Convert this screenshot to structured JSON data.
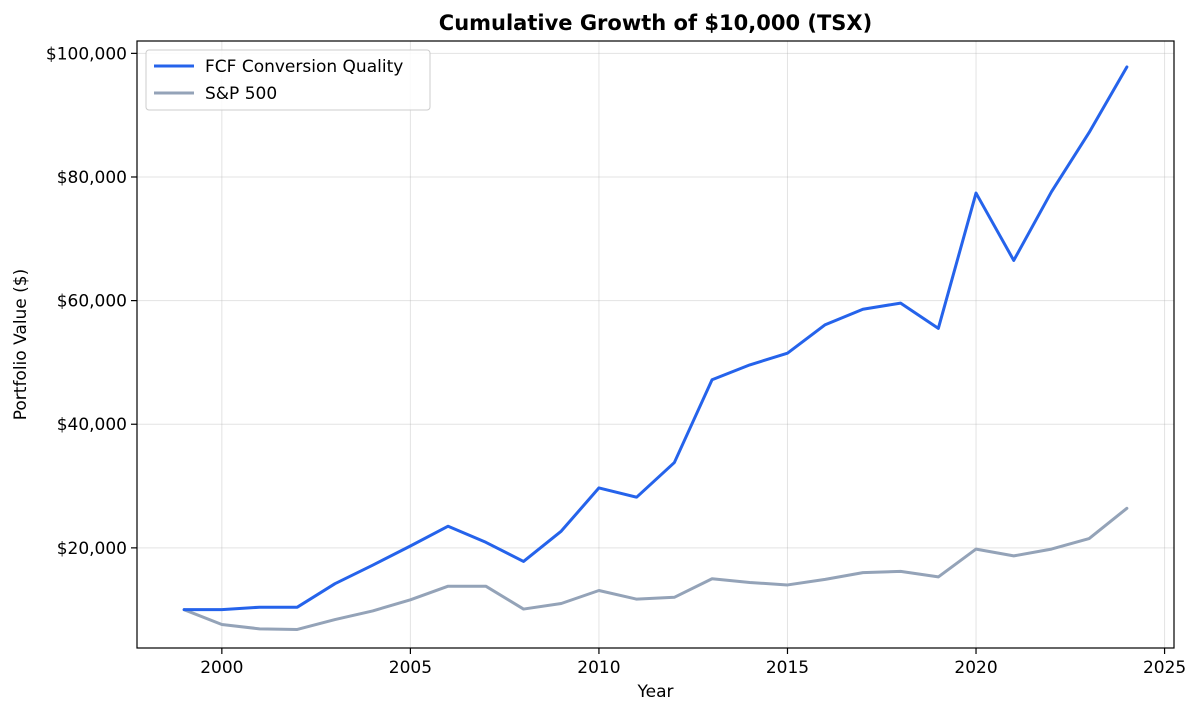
{
  "chart_data": {
    "type": "line",
    "title": "Cumulative Growth of $10,000 (TSX)",
    "xlabel": "Year",
    "ylabel": "Portfolio Value ($)",
    "xlim": [
      1997.75,
      2025.25
    ],
    "ylim": [
      3800,
      102000
    ],
    "x_ticks": [
      2000,
      2005,
      2010,
      2015,
      2020,
      2025
    ],
    "y_ticks": [
      20000,
      40000,
      60000,
      80000,
      100000
    ],
    "y_tick_labels": [
      "$20,000",
      "$40,000",
      "$60,000",
      "$80,000",
      "$100,000"
    ],
    "grid": true,
    "legend_position": "top-left",
    "x": [
      1999,
      2000,
      2001,
      2002,
      2003,
      2004,
      2005,
      2006,
      2007,
      2008,
      2009,
      2010,
      2011,
      2012,
      2013,
      2014,
      2015,
      2016,
      2017,
      2018,
      2019,
      2020,
      2021,
      2022,
      2023,
      2024
    ],
    "series": [
      {
        "name": "FCF Conversion Quality",
        "color": "#2563eb",
        "values": [
          10000,
          10000,
          10400,
          10400,
          14200,
          17200,
          20300,
          23500,
          20900,
          17800,
          22700,
          29700,
          28200,
          33800,
          47200,
          49600,
          51500,
          56100,
          58600,
          59600,
          55500,
          77400,
          66500,
          77600,
          87200,
          97800
        ]
      },
      {
        "name": "S&P 500",
        "color": "#94a3b8",
        "values": [
          10000,
          7600,
          6900,
          6800,
          8400,
          9800,
          11600,
          13800,
          13800,
          10100,
          11000,
          13100,
          11700,
          12000,
          15000,
          14400,
          14000,
          14900,
          16000,
          16200,
          15300,
          19800,
          18700,
          19800,
          21500,
          26400
        ]
      }
    ]
  }
}
